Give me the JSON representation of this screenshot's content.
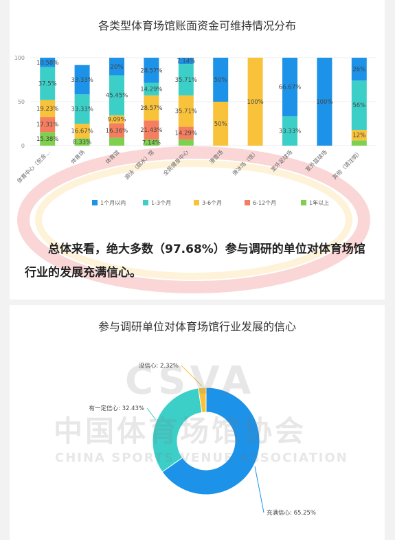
{
  "colors": {
    "c1": "#1c92e8",
    "c2": "#3ccfc8",
    "c3": "#f8c23a",
    "c4": "#f47e5f",
    "c5": "#7ed04e"
  },
  "chart_data": [
    {
      "type": "bar",
      "stacked": true,
      "title": "各类型体育场馆账面资金可维持情况分布",
      "ylim": [
        0,
        100
      ],
      "yticks": [
        "0",
        "50",
        "100"
      ],
      "categories": [
        "体育中心（包含...",
        "体育场",
        "体育馆",
        "游泳（跳水）馆",
        "全民健身中心",
        "滑雪场",
        "滑冰场（馆）",
        "室外足球场",
        "室外篮球场",
        "其他（请注明）"
      ],
      "series": [
        {
          "name": "1年以上",
          "color": "#7ed04e",
          "values": [
            15.38,
            8.33,
            9.09,
            7.14,
            7.14,
            0,
            0,
            0,
            0,
            6
          ],
          "labels": [
            "15.38%",
            "8.33%",
            "",
            "7.14%",
            "",
            "",
            "",
            "",
            "",
            ""
          ]
        },
        {
          "name": "6-12个月",
          "color": "#f47e5f",
          "values": [
            17.31,
            0,
            16.36,
            21.43,
            14.29,
            0,
            0,
            0,
            0,
            0
          ],
          "labels": [
            "17.31%",
            "",
            "16.36%",
            "21.43%",
            "14.29%",
            "",
            "",
            "",
            "",
            ""
          ]
        },
        {
          "name": "3-6个月",
          "color": "#f8c23a",
          "values": [
            19.23,
            16.67,
            9.09,
            28.57,
            35.71,
            50,
            100,
            0,
            0,
            12
          ],
          "labels": [
            "19.23%",
            "16.67%",
            "9.09%",
            "28.57%",
            "35.71%",
            "50%",
            "100%",
            "",
            "",
            "12%"
          ]
        },
        {
          "name": "1-3个月",
          "color": "#3ccfc8",
          "values": [
            37.5,
            33.33,
            45.45,
            14.29,
            35.71,
            0,
            0,
            33.33,
            0,
            56
          ],
          "labels": [
            "37.5%",
            "33.33%",
            "45.45%",
            "14.29%",
            "35.71%",
            "",
            "",
            "33.33%",
            "",
            "56%"
          ]
        },
        {
          "name": "1个月以内",
          "color": "#1c92e8",
          "values": [
            10.58,
            33.33,
            20,
            28.57,
            7.14,
            50,
            0,
            66.67,
            100,
            26
          ],
          "labels": [
            "10.58%",
            "33.33%",
            "20%",
            "28.57%",
            "7.14%",
            "50%",
            "",
            "66.67%",
            "100%",
            "26%"
          ]
        }
      ],
      "legend": [
        "1个月以内",
        "1-3个月",
        "3-6个月",
        "6-12个月",
        "1年以上"
      ],
      "legend_position": "bottom"
    },
    {
      "type": "pie",
      "donut": true,
      "title": "参与调研单位对体育场馆行业发展的信心",
      "slices": [
        {
          "label": "充满信心: 65.25%",
          "value": 65.25,
          "color": "#1c92e8"
        },
        {
          "label": "有一定信心: 32.43%",
          "value": 32.43,
          "color": "#3ccfc8"
        },
        {
          "label": "没信心: 2.32%",
          "value": 2.32,
          "color": "#f8c23a"
        }
      ]
    }
  ],
  "summary_text": "总体来看，绝大多数（97.68%）参与调研的单位对体育场馆行业的发展充满信心。",
  "watermark": {
    "line1": "CSVA",
    "line2": "中国体育场馆协会",
    "line3": "CHINA SPORTS VENUE ASSOCIATION"
  }
}
